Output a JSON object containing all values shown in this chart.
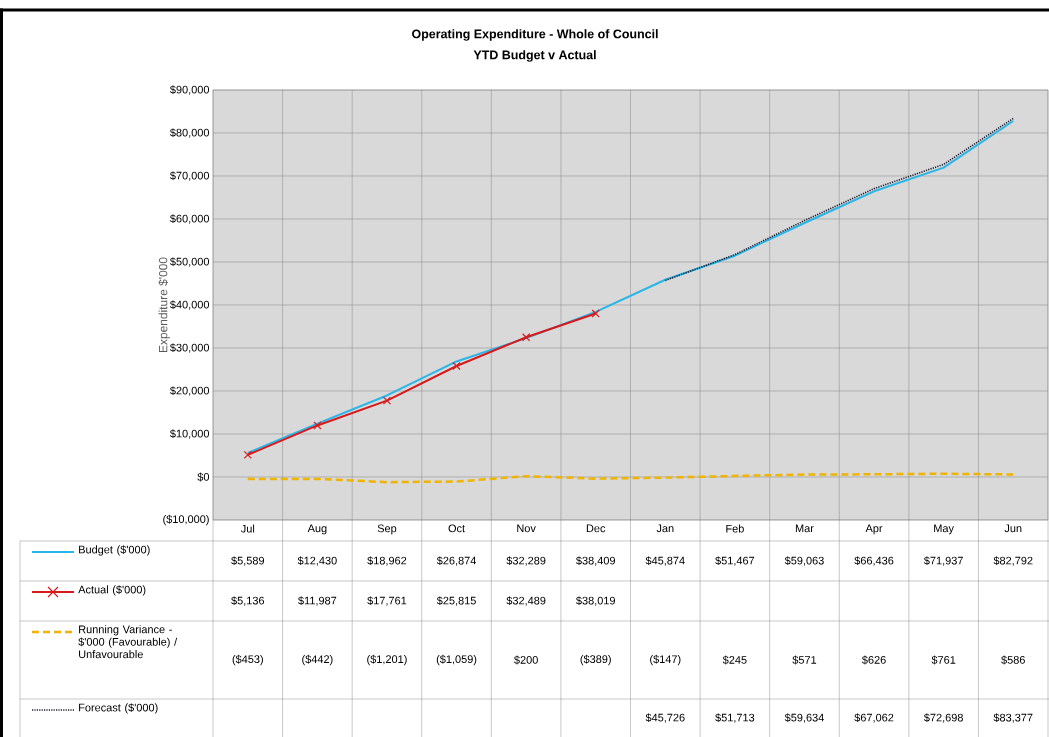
{
  "chart_data": {
    "type": "line",
    "title": "Operating Expenditure - Whole of Council",
    "subtitle": "YTD Budget v Actual",
    "ylabel": "Expenditure $'000",
    "categories": [
      "Jul",
      "Aug",
      "Sep",
      "Oct",
      "Nov",
      "Dec",
      "Jan",
      "Feb",
      "Mar",
      "Apr",
      "May",
      "Jun"
    ],
    "series": [
      {
        "name": "Budget ($'000)",
        "color": "#29b5e8",
        "marker": "none",
        "line_style": "solid",
        "values": [
          5589,
          12430,
          18962,
          26874,
          32289,
          38409,
          45874,
          51467,
          59063,
          66436,
          71937,
          82792
        ],
        "value_labels": [
          "$5,589",
          "$12,430",
          "$18,962",
          "$26,874",
          "$32,289",
          "$38,409",
          "$45,874",
          "$51,467",
          "$59,063",
          "$66,436",
          "$71,937",
          "$82,792"
        ]
      },
      {
        "name": "Actual ($'000)",
        "color": "#d7191c",
        "marker": "cross",
        "line_style": "solid",
        "values": [
          5136,
          11987,
          17761,
          25815,
          32489,
          38019,
          null,
          null,
          null,
          null,
          null,
          null
        ],
        "value_labels": [
          "$5,136",
          "$11,987",
          "$17,761",
          "$25,815",
          "$32,489",
          "$38,019",
          null,
          null,
          null,
          null,
          null,
          null
        ]
      },
      {
        "name": "Running Variance - $'000 (Favourable) / Unfavourable",
        "color": "#f0b400",
        "marker": "none",
        "line_style": "dashed",
        "values": [
          -453,
          -442,
          -1201,
          -1059,
          200,
          -389,
          -147,
          245,
          571,
          626,
          761,
          586
        ],
        "value_labels": [
          "($453)",
          "($442)",
          "($1,201)",
          "($1,059)",
          "$200",
          "($389)",
          "($147)",
          "$245",
          "$571",
          "$626",
          "$761",
          "$586"
        ]
      },
      {
        "name": "Forecast ($'000)",
        "color": "#1a1a2e",
        "marker": "none",
        "line_style": "dotted",
        "values": [
          null,
          null,
          null,
          null,
          null,
          null,
          45726,
          51713,
          59634,
          67062,
          72698,
          83377
        ],
        "value_labels": [
          null,
          null,
          null,
          null,
          null,
          null,
          "$45,726",
          "$51,713",
          "$59,634",
          "$67,062",
          "$72,698",
          "$83,377"
        ]
      }
    ],
    "ylim": [
      -10000,
      90000
    ],
    "yticks": [
      {
        "value": -10000,
        "label": "($10,000)"
      },
      {
        "value": 0,
        "label": "$0"
      },
      {
        "value": 10000,
        "label": "$10,000"
      },
      {
        "value": 20000,
        "label": "$20,000"
      },
      {
        "value": 30000,
        "label": "$30,000"
      },
      {
        "value": 40000,
        "label": "$40,000"
      },
      {
        "value": 50000,
        "label": "$50,000"
      },
      {
        "value": 60000,
        "label": "$60,000"
      },
      {
        "value": 70000,
        "label": "$70,000"
      },
      {
        "value": 80000,
        "label": "$80,000"
      },
      {
        "value": 90000,
        "label": "$90,000"
      }
    ],
    "grid": true,
    "legend": "bottom"
  }
}
